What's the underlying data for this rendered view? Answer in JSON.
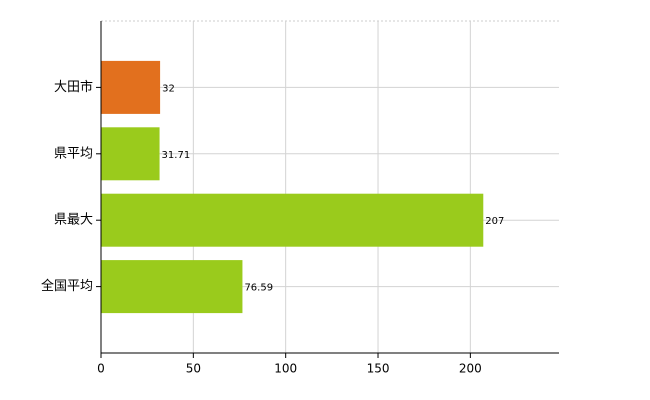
{
  "chart_data": {
    "type": "hbar",
    "categories": [
      "大田市",
      "県平均",
      "県最大",
      "全国平均"
    ],
    "values": [
      32,
      31.71,
      207,
      76.59
    ],
    "colors": [
      "#e2701e",
      "#9acb1c",
      "#9acb1c",
      "#9acb1c"
    ],
    "xlim": [
      0,
      248
    ],
    "xticks": [
      0,
      50,
      100,
      150,
      200
    ],
    "grid": true
  }
}
